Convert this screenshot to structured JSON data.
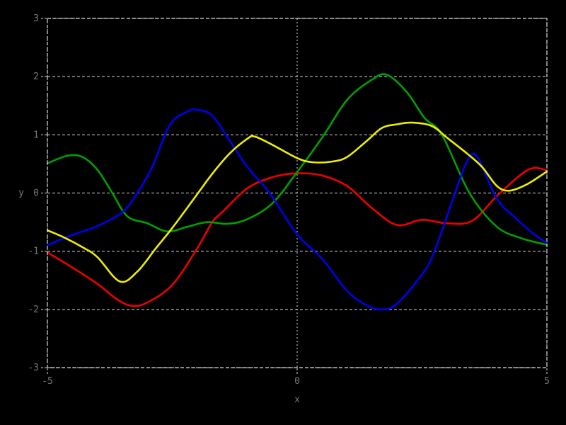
{
  "figure": {
    "background": "#000000",
    "border_color": "#e0e0e0",
    "grid_color": "#d8d8e0",
    "label_color": "#787878"
  },
  "chart_data": {
    "type": "line",
    "title": "",
    "xlabel": "x",
    "ylabel": "y",
    "xlim": [
      -5,
      5
    ],
    "ylim": [
      -3,
      3
    ],
    "xticks": [
      -5,
      0,
      5
    ],
    "yticks": [
      -3,
      -2,
      -1,
      0,
      1,
      2,
      3
    ],
    "grid": true,
    "legend": "none",
    "series": [
      {
        "name": "red-curve",
        "color": "#ee0000",
        "points": [
          [
            -5,
            -1.02
          ],
          [
            -4.5,
            -1.28
          ],
          [
            -4,
            -1.56
          ],
          [
            -3.6,
            -1.83
          ],
          [
            -3.3,
            -1.94
          ],
          [
            -3,
            -1.88
          ],
          [
            -2.5,
            -1.58
          ],
          [
            -2,
            -0.95
          ],
          [
            -1.7,
            -0.5
          ],
          [
            -1.5,
            -0.33
          ],
          [
            -1,
            0.08
          ],
          [
            -0.5,
            0.27
          ],
          [
            0,
            0.34
          ],
          [
            0.5,
            0.3
          ],
          [
            1,
            0.12
          ],
          [
            1.5,
            -0.26
          ],
          [
            2,
            -0.55
          ],
          [
            2.5,
            -0.46
          ],
          [
            3,
            -0.52
          ],
          [
            3.5,
            -0.48
          ],
          [
            4,
            -0.05
          ],
          [
            4.5,
            0.33
          ],
          [
            4.75,
            0.43
          ],
          [
            5,
            0.39
          ]
        ]
      },
      {
        "name": "green-curve",
        "color": "#00a000",
        "points": [
          [
            -5,
            0.51
          ],
          [
            -4.6,
            0.64
          ],
          [
            -4.3,
            0.62
          ],
          [
            -4,
            0.4
          ],
          [
            -3.7,
            0.0
          ],
          [
            -3.4,
            -0.4
          ],
          [
            -3,
            -0.52
          ],
          [
            -2.6,
            -0.66
          ],
          [
            -2.2,
            -0.58
          ],
          [
            -1.8,
            -0.5
          ],
          [
            -1.4,
            -0.53
          ],
          [
            -1,
            -0.45
          ],
          [
            -0.5,
            -0.18
          ],
          [
            0,
            0.36
          ],
          [
            0.5,
            0.95
          ],
          [
            1,
            1.6
          ],
          [
            1.5,
            1.95
          ],
          [
            1.8,
            2.03
          ],
          [
            2.2,
            1.73
          ],
          [
            2.55,
            1.29
          ],
          [
            2.9,
            1.0
          ],
          [
            3.45,
            0.0
          ],
          [
            4,
            -0.58
          ],
          [
            4.5,
            -0.78
          ],
          [
            5,
            -0.89
          ]
        ]
      },
      {
        "name": "blue-curve",
        "color": "#0000ee",
        "points": [
          [
            -5,
            -0.9
          ],
          [
            -4.65,
            -0.77
          ],
          [
            -4.3,
            -0.66
          ],
          [
            -4,
            -0.57
          ],
          [
            -3.5,
            -0.33
          ],
          [
            -3.2,
            0.0
          ],
          [
            -2.9,
            0.45
          ],
          [
            -2.55,
            1.17
          ],
          [
            -2.2,
            1.4
          ],
          [
            -2,
            1.43
          ],
          [
            -1.7,
            1.33
          ],
          [
            -1.35,
            0.9
          ],
          [
            -1,
            0.45
          ],
          [
            -0.55,
            0.0
          ],
          [
            0,
            -0.71
          ],
          [
            0.5,
            -1.13
          ],
          [
            1,
            -1.68
          ],
          [
            1.4,
            -1.93
          ],
          [
            1.7,
            -2.0
          ],
          [
            2,
            -1.9
          ],
          [
            2.5,
            -1.4
          ],
          [
            2.75,
            -1.0
          ],
          [
            3.16,
            0.0
          ],
          [
            3.4,
            0.54
          ],
          [
            3.6,
            0.63
          ],
          [
            4,
            -0.1
          ],
          [
            4.4,
            -0.45
          ],
          [
            4.7,
            -0.68
          ],
          [
            5,
            -0.86
          ]
        ]
      },
      {
        "name": "yellow-curve",
        "color": "#eeee00",
        "points": [
          [
            -5,
            -0.64
          ],
          [
            -4.65,
            -0.77
          ],
          [
            -4.3,
            -0.93
          ],
          [
            -4,
            -1.1
          ],
          [
            -3.55,
            -1.52
          ],
          [
            -3.2,
            -1.35
          ],
          [
            -2.83,
            -0.95
          ],
          [
            -2.5,
            -0.6
          ],
          [
            -2,
            -0.02
          ],
          [
            -1.7,
            0.33
          ],
          [
            -1.35,
            0.68
          ],
          [
            -1,
            0.93
          ],
          [
            -0.85,
            0.97
          ],
          [
            -0.5,
            0.83
          ],
          [
            0,
            0.6
          ],
          [
            0.3,
            0.53
          ],
          [
            0.7,
            0.54
          ],
          [
            1,
            0.62
          ],
          [
            1.4,
            0.9
          ],
          [
            1.7,
            1.12
          ],
          [
            2,
            1.18
          ],
          [
            2.3,
            1.21
          ],
          [
            2.7,
            1.15
          ],
          [
            3,
            0.95
          ],
          [
            3.4,
            0.68
          ],
          [
            3.7,
            0.45
          ],
          [
            4,
            0.12
          ],
          [
            4.25,
            0.04
          ],
          [
            4.6,
            0.15
          ],
          [
            5,
            0.37
          ]
        ]
      }
    ]
  }
}
